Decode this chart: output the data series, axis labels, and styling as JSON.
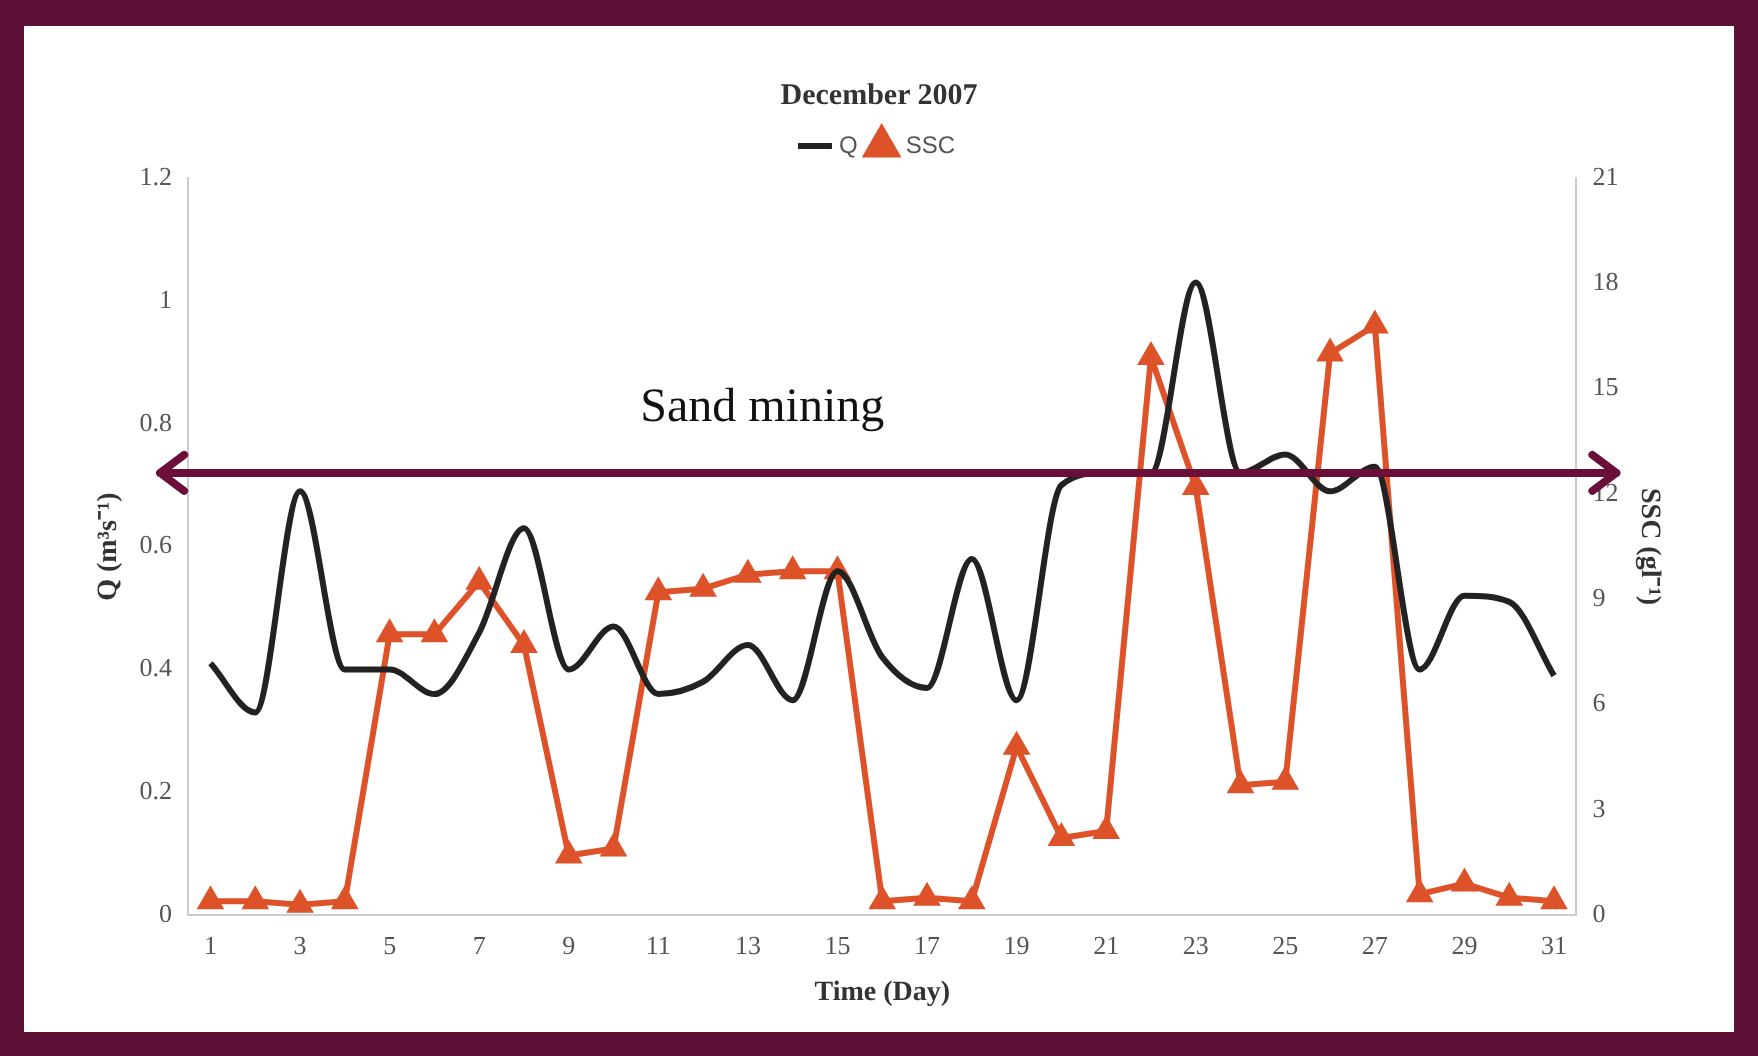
{
  "chart_data": {
    "type": "line",
    "title": "December 2007",
    "xlabel": "Time (Day)",
    "ylabel": "Q (m³s⁻¹)",
    "y2label": "SSC (gl⁻¹)",
    "x": [
      1,
      2,
      3,
      4,
      5,
      6,
      7,
      8,
      9,
      10,
      11,
      12,
      13,
      14,
      15,
      16,
      17,
      18,
      19,
      20,
      21,
      22,
      23,
      24,
      25,
      26,
      27,
      28,
      29,
      30,
      31
    ],
    "xlim": [
      0.5,
      31.5
    ],
    "xticks": [
      1,
      3,
      5,
      7,
      9,
      11,
      13,
      15,
      17,
      19,
      21,
      23,
      25,
      27,
      29,
      31
    ],
    "series": [
      {
        "name": "Q",
        "color": "#222222",
        "marker": "none",
        "values": [
          0.41,
          0.33,
          0.69,
          0.4,
          0.4,
          0.36,
          0.46,
          0.63,
          0.4,
          0.47,
          0.36,
          0.38,
          0.44,
          0.35,
          0.56,
          0.42,
          0.37,
          0.58,
          0.35,
          0.7,
          0.72,
          0.72,
          1.03,
          0.72,
          0.75,
          0.69,
          0.73,
          0.4,
          0.52,
          0.51,
          0.39
        ]
      },
      {
        "name": "SSC",
        "type": "line",
        "axis": "y2",
        "color": "#dd5228",
        "marker": "triangle",
        "values": [
          0.4,
          0.4,
          0.3,
          0.4,
          8.0,
          8.0,
          9.5,
          7.7,
          1.7,
          1.9,
          9.2,
          9.3,
          9.7,
          9.8,
          9.8,
          0.4,
          0.5,
          0.4,
          4.8,
          2.2,
          2.4,
          15.9,
          12.2,
          3.7,
          3.8,
          16.0,
          16.8,
          0.6,
          0.9,
          0.5,
          0.4
        ]
      }
    ],
    "ylim": [
      0,
      1.2
    ],
    "yticks": [
      0,
      0.2,
      0.4,
      0.6,
      0.8,
      1,
      1.2
    ],
    "y2lim": [
      0,
      21
    ],
    "y2ticks": [
      0,
      3,
      6,
      9,
      12,
      15,
      18,
      21
    ],
    "grid": false,
    "legend": "top",
    "ref_lines": [
      {
        "axis": "y",
        "value": 0.72,
        "label": "Sand mining",
        "color": "#6b0f3a"
      }
    ]
  }
}
